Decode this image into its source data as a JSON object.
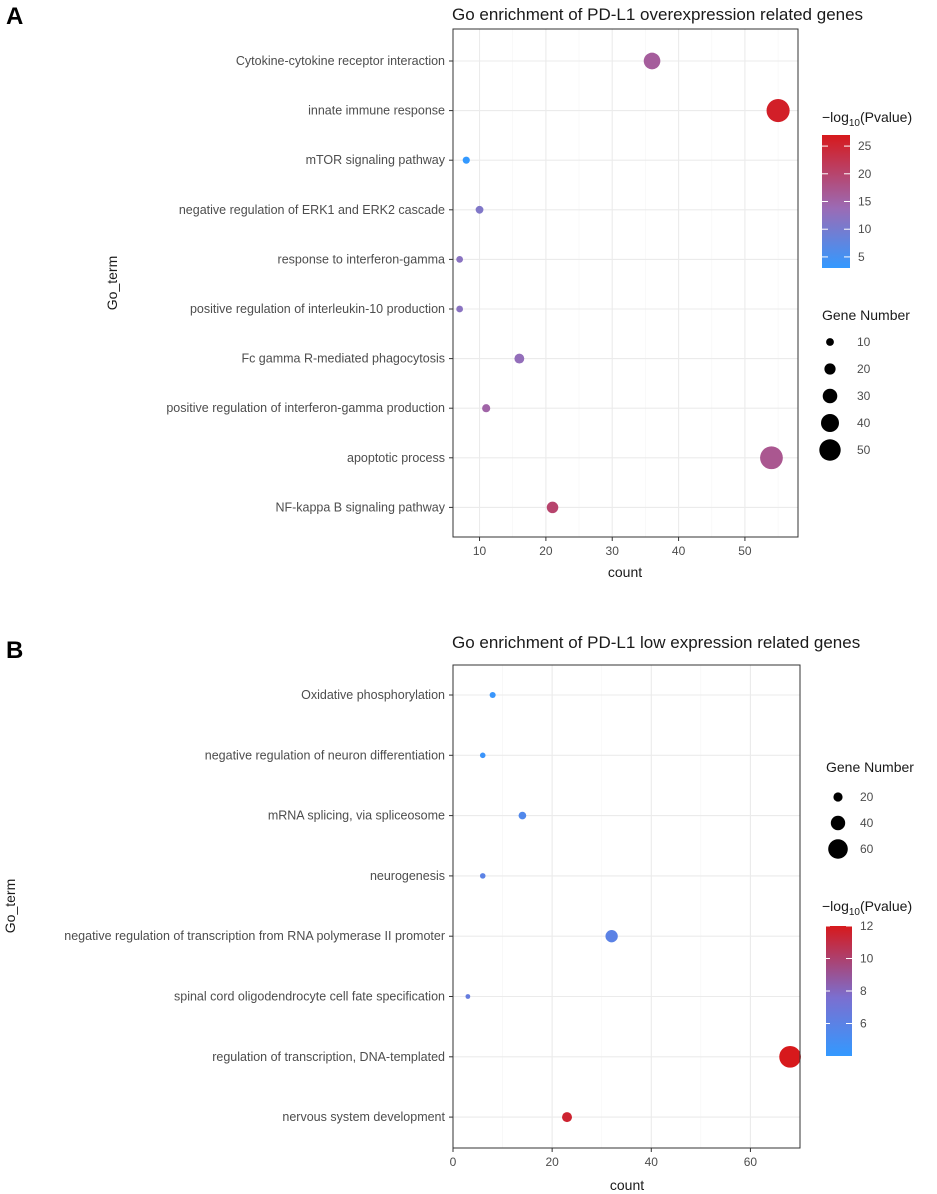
{
  "chart_data": [
    {
      "panel": "A",
      "type": "scatter",
      "title": "Go enrichment of PD-L1 overexpression related genes",
      "xlabel": "count",
      "ylabel": "Go_term",
      "xlim": [
        6,
        58
      ],
      "xticks": [
        10,
        20,
        30,
        40,
        50
      ],
      "categories": [
        "Cytokine-cytokine receptor interaction",
        "innate immune response",
        "mTOR signaling pathway",
        "negative regulation of ERK1 and ERK2 cascade",
        "response to interferon-gamma",
        "positive regulation of interleukin-10 production",
        "Fc gamma R-mediated phagocytosis",
        "positive regulation of interferon-gamma production",
        "apoptotic process",
        "NF-kappa B signaling pathway"
      ],
      "x": [
        36,
        55,
        8,
        10,
        7,
        7,
        16,
        11,
        54,
        21
      ],
      "size": [
        36,
        55,
        8,
        10,
        7,
        7,
        16,
        11,
        54,
        21
      ],
      "color_value": [
        16,
        26,
        3,
        11,
        12,
        12,
        13,
        15,
        17,
        20
      ],
      "color_legend": {
        "title_prefix": "−log",
        "title_sub": "10",
        "title_suffix": "(Pvalue)",
        "min": 3,
        "max": 27,
        "ticks": [
          5,
          10,
          15,
          20,
          25
        ],
        "low_color": "#3399ff",
        "mid_color": "#9b6bb5",
        "high_color": "#d7191c"
      },
      "size_legend": {
        "title": "Gene Number",
        "values": [
          10,
          20,
          30,
          40,
          50
        ]
      },
      "grid": true
    },
    {
      "panel": "B",
      "type": "scatter",
      "title": "Go enrichment of PD-L1 low expression related genes",
      "xlabel": "count",
      "ylabel": "Go_term",
      "xlim": [
        0,
        70
      ],
      "xticks": [
        0,
        20,
        40,
        60
      ],
      "categories": [
        "Oxidative phosphorylation",
        "negative regulation of neuron differentiation",
        "mRNA splicing, via spliceosome",
        "neurogenesis",
        "negative regulation of transcription from RNA polymerase II promoter",
        "spinal cord oligodendrocyte cell fate specification",
        "regulation of transcription, DNA-templated",
        "nervous system development"
      ],
      "x": [
        8,
        6,
        14,
        6,
        32,
        3,
        68,
        23
      ],
      "size": [
        8,
        6,
        14,
        6,
        32,
        3,
        68,
        23
      ],
      "color_value": [
        4.3,
        4.4,
        5.5,
        6.0,
        6.0,
        6.5,
        12,
        11.5
      ],
      "color_legend": {
        "title_prefix": "−log",
        "title_sub": "10",
        "title_suffix": "(Pvalue)",
        "min": 4,
        "max": 12,
        "ticks": [
          6,
          8,
          10,
          12
        ],
        "low_color": "#3399ff",
        "mid_color": "#7b6fd0",
        "high_color": "#d7191c"
      },
      "size_legend": {
        "title": "Gene Number",
        "values": [
          20,
          40,
          60
        ]
      },
      "grid": true
    }
  ]
}
